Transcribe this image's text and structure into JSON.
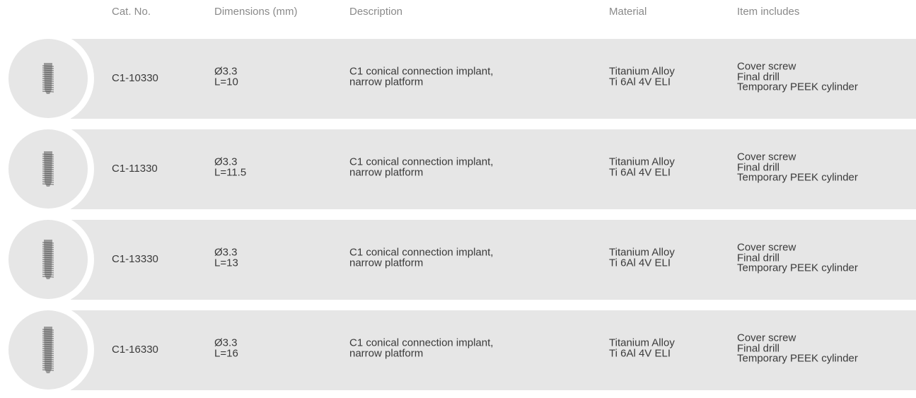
{
  "header": {
    "columns": [
      "Cat. No.",
      "Dimensions (mm)",
      "Description",
      "Material",
      "Item includes"
    ]
  },
  "table": {
    "rows": [
      {
        "cat_no": "C1-10330",
        "dimensions": [
          "Ø3.3",
          "L=10"
        ],
        "description": [
          "C1 conical connection implant,",
          "narrow platform"
        ],
        "material": [
          "Titanium Alloy",
          "Ti 6Al 4V ELI"
        ],
        "includes": [
          "Cover screw",
          "Final drill",
          "Temporary PEEK cylinder"
        ]
      },
      {
        "cat_no": "C1-11330",
        "dimensions": [
          "Ø3.3",
          "L=11.5"
        ],
        "description": [
          "C1 conical connection implant,",
          "narrow platform"
        ],
        "material": [
          "Titanium Alloy",
          "Ti 6Al 4V ELI"
        ],
        "includes": [
          "Cover screw",
          "Final drill",
          "Temporary PEEK cylinder"
        ]
      },
      {
        "cat_no": "C1-13330",
        "dimensions": [
          "Ø3.3",
          "L=13"
        ],
        "description": [
          "C1 conical connection implant,",
          "narrow platform"
        ],
        "material": [
          "Titanium Alloy",
          "Ti 6Al 4V ELI"
        ],
        "includes": [
          "Cover screw",
          "Final drill",
          "Temporary PEEK cylinder"
        ]
      },
      {
        "cat_no": "C1-16330",
        "dimensions": [
          "Ø3.3",
          "L=16"
        ],
        "description": [
          "C1 conical connection implant,",
          "narrow platform"
        ],
        "material": [
          "Titanium Alloy",
          "Ti 6Al 4V ELI"
        ],
        "includes": [
          "Cover screw",
          "Final drill",
          "Temporary PEEK cylinder"
        ]
      }
    ]
  }
}
